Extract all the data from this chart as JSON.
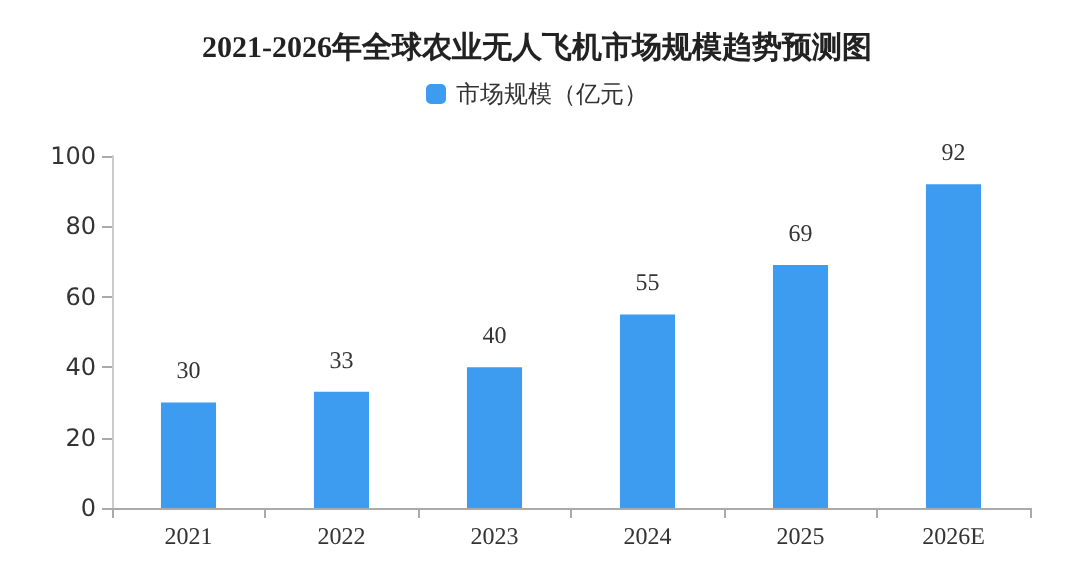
{
  "chart_data": {
    "type": "bar",
    "title": "2021-2026年全球农业无人飞机市场规模趋势预测图",
    "categories": [
      "2021",
      "2022",
      "2023",
      "2024",
      "2025",
      "2026E"
    ],
    "series": [
      {
        "name": "市场规模（亿元）",
        "color": "#3d9bf0",
        "values": [
          30,
          33,
          40,
          55,
          69,
          92
        ]
      }
    ],
    "ylim": [
      0,
      100
    ],
    "yticks": [
      0,
      20,
      40,
      60,
      80,
      100
    ],
    "grid": false,
    "legend": "top",
    "data_labels": true
  }
}
